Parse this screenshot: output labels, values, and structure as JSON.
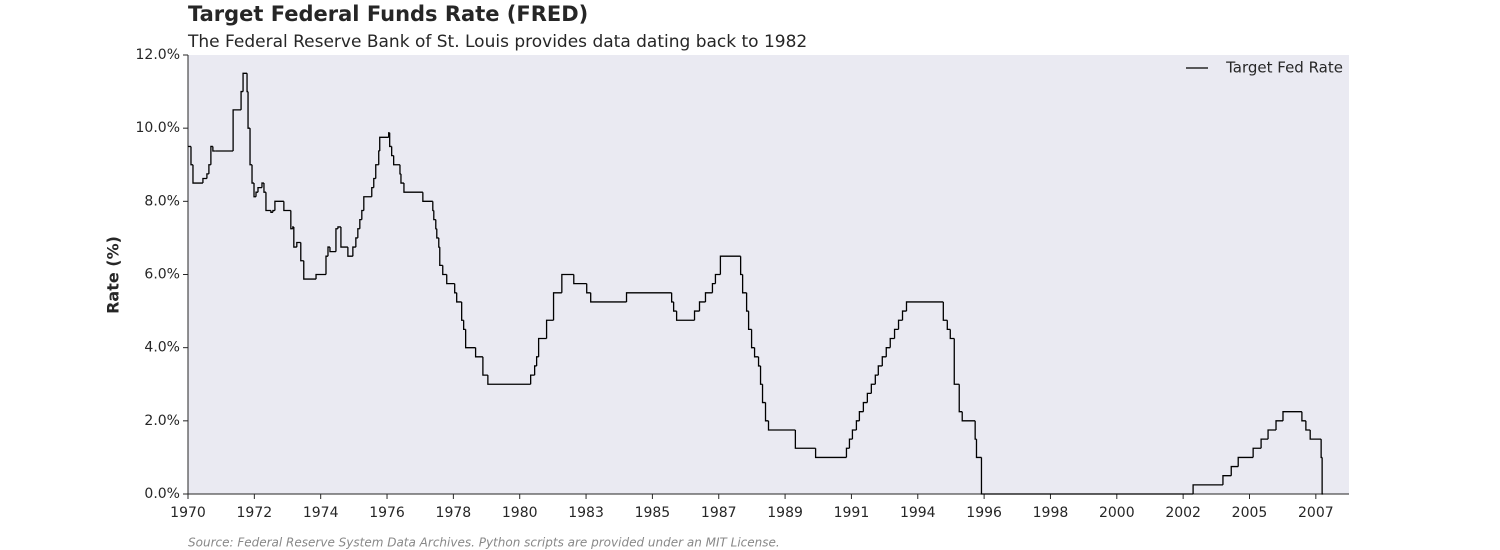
{
  "chart_data": {
    "type": "step",
    "title": "Target Federal Funds Rate (FRED)",
    "subtitle": "The Federal Reserve Bank of St. Louis provides data dating back to 1982",
    "ylabel": "Rate (%)",
    "source": "Source: Federal Reserve System Data Archives. Python scripts are provided under an MIT License.",
    "legend": "upper right",
    "background": "#eaeaf2",
    "xlim": [
      1970,
      2005
    ],
    "ylim": [
      0,
      12
    ],
    "xticks": [
      1970,
      1972,
      1974,
      1976,
      1978,
      1980,
      {
        "value": 1982,
        "label": "1983"
      },
      {
        "value": 1984,
        "label": "1985"
      },
      {
        "value": 1986,
        "label": "1987"
      },
      {
        "value": 1988,
        "label": "1989"
      },
      {
        "value": 1990,
        "label": "1991"
      },
      {
        "value": 1992,
        "label": "1994"
      },
      {
        "value": 1994,
        "label": "1996"
      },
      {
        "value": 1996,
        "label": "1998"
      },
      {
        "value": 1998,
        "label": "2000"
      },
      {
        "value": 2000,
        "label": "2002"
      },
      {
        "value": 2002,
        "label": "2005"
      },
      {
        "value": 2004,
        "label": "2007"
      }
    ],
    "yticks": [
      {
        "value": 0,
        "label": "0.0%"
      },
      {
        "value": 2,
        "label": "2.0%"
      },
      {
        "value": 4,
        "label": "4.0%"
      },
      {
        "value": 6,
        "label": "6.0%"
      },
      {
        "value": 8,
        "label": "8.0%"
      },
      {
        "value": 10,
        "label": "10.0%"
      },
      {
        "value": 12,
        "label": "12.0%"
      }
    ],
    "series": [
      {
        "name": "Target Fed Rate",
        "color": "#000000",
        "x": [
          1970.0,
          1970.09,
          1970.15,
          1970.45,
          1970.57,
          1970.63,
          1970.69,
          1970.75,
          1970.84,
          1971.36,
          1971.6,
          1971.66,
          1971.78,
          1971.81,
          1971.87,
          1971.93,
          1971.99,
          1972.05,
          1972.11,
          1972.23,
          1972.29,
          1972.35,
          1972.5,
          1972.56,
          1972.62,
          1972.89,
          1973.1,
          1973.16,
          1973.19,
          1973.28,
          1973.4,
          1973.49,
          1973.86,
          1974.16,
          1974.22,
          1974.28,
          1974.46,
          1974.52,
          1974.61,
          1974.82,
          1974.97,
          1975.06,
          1975.12,
          1975.18,
          1975.24,
          1975.3,
          1975.54,
          1975.6,
          1975.66,
          1975.75,
          1975.78,
          1976.05,
          1976.08,
          1976.14,
          1976.2,
          1976.39,
          1976.42,
          1976.51,
          1977.08,
          1977.38,
          1977.41,
          1977.47,
          1977.5,
          1977.56,
          1977.59,
          1977.68,
          1977.8,
          1978.04,
          1978.1,
          1978.25,
          1978.31,
          1978.37,
          1978.67,
          1978.89,
          1979.04,
          1980.33,
          1980.45,
          1980.51,
          1980.57,
          1980.81,
          1981.02,
          1981.27,
          1981.63,
          1982.02,
          1982.14,
          1983.22,
          1984.58,
          1984.64,
          1984.73,
          1985.27,
          1985.42,
          1985.6,
          1985.81,
          1985.9,
          1986.05,
          1986.66,
          1986.72,
          1986.84,
          1986.9,
          1986.99,
          1987.08,
          1987.2,
          1987.26,
          1987.32,
          1987.41,
          1987.5,
          1988.31,
          1988.92,
          1989.85,
          1989.94,
          1990.03,
          1990.15,
          1990.24,
          1990.36,
          1990.48,
          1990.6,
          1990.72,
          1990.81,
          1990.93,
          1991.05,
          1991.17,
          1991.3,
          1991.42,
          1991.54,
          1991.66,
          1992.77,
          1992.89,
          1992.98,
          1993.1,
          1993.25,
          1993.34,
          1993.73,
          1993.77,
          1993.92,
          2000.3,
          2001.2,
          2001.45,
          2001.66,
          2002.11,
          2002.35,
          2002.56,
          2002.8,
          2003.01,
          2003.58,
          2003.7,
          2003.83,
          2004.16,
          2004.19,
          2004.22
        ],
        "values": [
          9.5,
          9.0,
          8.5,
          8.625,
          8.75,
          9.0,
          9.5,
          9.375,
          9.375,
          10.5,
          11.0,
          11.5,
          11.0,
          10.0,
          9.0,
          8.5,
          8.125,
          8.25,
          8.375,
          8.5,
          8.25,
          7.75,
          7.7,
          7.75,
          8.0,
          7.75,
          7.25,
          7.3,
          6.75,
          6.875,
          6.375,
          5.875,
          6.0,
          6.5,
          6.75,
          6.625,
          7.25,
          7.3,
          6.75,
          6.5,
          6.75,
          7.0,
          7.25,
          7.5,
          7.75,
          8.125,
          8.375,
          8.625,
          9.0,
          9.375,
          9.75,
          9.875,
          9.5,
          9.25,
          9.0,
          8.75,
          8.5,
          8.25,
          8.0,
          7.75,
          7.5,
          7.25,
          7.0,
          6.75,
          6.25,
          6.0,
          5.75,
          5.5,
          5.25,
          4.75,
          4.5,
          4.0,
          3.75,
          3.25,
          3.0,
          3.25,
          3.5,
          3.75,
          4.25,
          4.75,
          5.5,
          6.0,
          5.75,
          5.5,
          5.25,
          5.5,
          5.25,
          5.0,
          4.75,
          5.0,
          5.25,
          5.5,
          5.75,
          6.0,
          6.5,
          6.0,
          5.5,
          5.0,
          4.5,
          4.0,
          3.75,
          3.5,
          3.0,
          2.5,
          2.0,
          1.75,
          1.25,
          1.0,
          1.25,
          1.5,
          1.75,
          2.0,
          2.25,
          2.5,
          2.75,
          3.0,
          3.25,
          3.5,
          3.75,
          4.0,
          4.25,
          4.5,
          4.75,
          5.0,
          5.25,
          4.75,
          4.5,
          4.25,
          3.0,
          2.25,
          2.0,
          1.5,
          1.0,
          0.0,
          0.25,
          0.5,
          0.75,
          1.0,
          1.25,
          1.5,
          1.75,
          2.0,
          2.25,
          2.0,
          1.75,
          1.5,
          1.0,
          0.0,
          0.0
        ]
      }
    ]
  }
}
